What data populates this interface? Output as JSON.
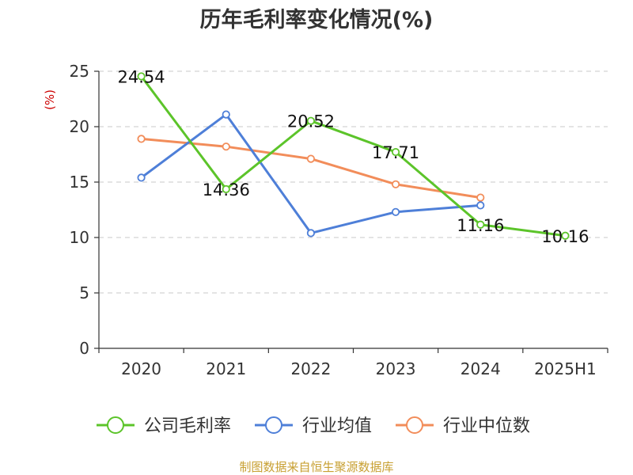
{
  "chart_data": {
    "type": "line",
    "title": "历年毛利率变化情况(%)",
    "ylabel": "(%)",
    "xlabel": "",
    "categories": [
      "2020",
      "2021",
      "2022",
      "2023",
      "2024",
      "2025H1"
    ],
    "ylim": [
      0,
      25
    ],
    "yticks": [
      0,
      5,
      10,
      15,
      20,
      25
    ],
    "grid": true,
    "legend_position": "bottom",
    "series": [
      {
        "name": "公司毛利率",
        "color": "#5cc42a",
        "values": [
          24.54,
          14.36,
          20.52,
          17.71,
          11.16,
          10.16
        ],
        "labels": [
          "24.54",
          "14.36",
          "20.52",
          "17.71",
          "11.16",
          "10.16"
        ]
      },
      {
        "name": "行业均值",
        "color": "#4e7fd8",
        "values": [
          15.4,
          21.1,
          10.4,
          12.3,
          12.9,
          null
        ]
      },
      {
        "name": "行业中位数",
        "color": "#f28d5a",
        "values": [
          18.9,
          18.2,
          17.1,
          14.8,
          13.6,
          null
        ]
      }
    ],
    "source": "制图数据来自恒生聚源数据库"
  }
}
